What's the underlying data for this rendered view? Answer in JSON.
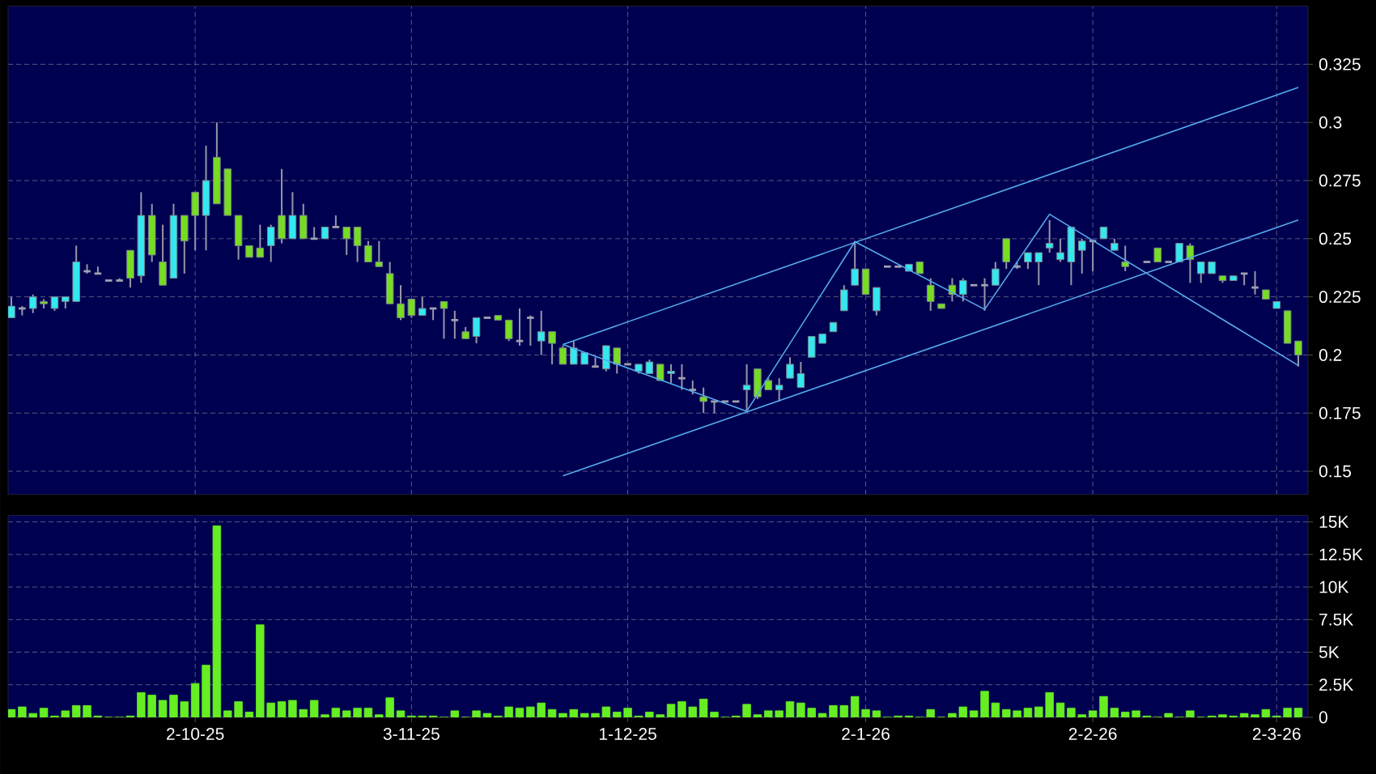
{
  "chart_data": [
    {
      "type": "candlestick",
      "tick_labels": "y",
      "grid": true,
      "categories": [
        null,
        null,
        null,
        null,
        null,
        null,
        null,
        null,
        null,
        null,
        null,
        null,
        null,
        null,
        null,
        null,
        null,
        null,
        null,
        null,
        null,
        null,
        null,
        null,
        null,
        null,
        null,
        null,
        null,
        null,
        null,
        null,
        null,
        null,
        null,
        null,
        null,
        null,
        null,
        null,
        null,
        null,
        null,
        null,
        null,
        null,
        null,
        null,
        null,
        null,
        null,
        null,
        null,
        null,
        null,
        null,
        null,
        null,
        null,
        null,
        null,
        null,
        null,
        null,
        null,
        null,
        null,
        null,
        null,
        null,
        null,
        null,
        null,
        null,
        null,
        null,
        null,
        null,
        null,
        null,
        null,
        null,
        null,
        null,
        null,
        null,
        null,
        null,
        null,
        null,
        null,
        null,
        null,
        null,
        null,
        null,
        null,
        null,
        null,
        null,
        null,
        null,
        null,
        null,
        null,
        null,
        null,
        null,
        null,
        null,
        null,
        null,
        null,
        null,
        null,
        null,
        null,
        null,
        null,
        null
      ],
      "ylim": [
        0.14,
        0.35
      ],
      "yticks": [
        0.15,
        0.175,
        0.2,
        0.225,
        0.25,
        0.275,
        0.3,
        0.325
      ],
      "ohlc": [
        [
          0.216,
          0.225,
          0.216,
          0.221
        ],
        [
          0.22,
          0.221,
          0.217,
          0.22
        ],
        [
          0.22,
          0.226,
          0.218,
          0.225
        ],
        [
          0.223,
          0.224,
          0.22,
          0.222
        ],
        [
          0.22,
          0.225,
          0.219,
          0.225
        ],
        [
          0.223,
          0.225,
          0.22,
          0.225
        ],
        [
          0.223,
          0.247,
          0.223,
          0.24
        ],
        [
          0.236,
          0.239,
          0.235,
          0.236
        ],
        [
          0.235,
          0.238,
          0.235,
          0.235
        ],
        [
          0.232,
          0.232,
          0.232,
          0.232
        ],
        [
          0.232,
          0.233,
          0.232,
          0.232
        ],
        [
          0.245,
          0.245,
          0.229,
          0.233
        ],
        [
          0.234,
          0.27,
          0.231,
          0.26
        ],
        [
          0.26,
          0.265,
          0.24,
          0.243
        ],
        [
          0.24,
          0.256,
          0.23,
          0.23
        ],
        [
          0.233,
          0.265,
          0.233,
          0.26
        ],
        [
          0.26,
          0.26,
          0.235,
          0.249
        ],
        [
          0.27,
          0.27,
          0.245,
          0.26
        ],
        [
          0.26,
          0.29,
          0.245,
          0.275
        ],
        [
          0.285,
          0.3,
          0.265,
          0.265
        ],
        [
          0.28,
          0.28,
          0.26,
          0.26
        ],
        [
          0.26,
          0.26,
          0.241,
          0.247
        ],
        [
          0.247,
          0.247,
          0.242,
          0.242
        ],
        [
          0.246,
          0.256,
          0.242,
          0.242
        ],
        [
          0.247,
          0.256,
          0.24,
          0.255
        ],
        [
          0.26,
          0.28,
          0.248,
          0.25
        ],
        [
          0.25,
          0.27,
          0.25,
          0.26
        ],
        [
          0.26,
          0.265,
          0.25,
          0.25
        ],
        [
          0.25,
          0.255,
          0.25,
          0.25
        ],
        [
          0.25,
          0.255,
          0.25,
          0.255
        ],
        [
          0.255,
          0.26,
          0.255,
          0.255
        ],
        [
          0.255,
          0.255,
          0.243,
          0.25
        ],
        [
          0.255,
          0.255,
          0.24,
          0.247
        ],
        [
          0.247,
          0.249,
          0.24,
          0.24
        ],
        [
          0.24,
          0.249,
          0.238,
          0.238
        ],
        [
          0.235,
          0.24,
          0.222,
          0.222
        ],
        [
          0.222,
          0.23,
          0.215,
          0.216
        ],
        [
          0.224,
          0.224,
          0.216,
          0.217
        ],
        [
          0.217,
          0.225,
          0.217,
          0.22
        ],
        [
          0.22,
          0.22,
          0.215,
          0.22
        ],
        [
          0.223,
          0.223,
          0.207,
          0.22
        ],
        [
          0.215,
          0.219,
          0.207,
          0.215
        ],
        [
          0.21,
          0.212,
          0.207,
          0.207
        ],
        [
          0.208,
          0.216,
          0.205,
          0.216
        ],
        [
          0.216,
          0.216,
          0.216,
          0.216
        ],
        [
          0.217,
          0.217,
          0.215,
          0.215
        ],
        [
          0.215,
          0.215,
          0.206,
          0.207
        ],
        [
          0.206,
          0.22,
          0.204,
          0.206
        ],
        [
          0.216,
          0.217,
          0.204,
          0.216
        ],
        [
          0.206,
          0.219,
          0.2,
          0.21
        ],
        [
          0.21,
          0.21,
          0.196,
          0.205
        ],
        [
          0.203,
          0.204,
          0.196,
          0.196
        ],
        [
          0.196,
          0.206,
          0.196,
          0.203
        ],
        [
          0.196,
          0.201,
          0.196,
          0.201
        ],
        [
          0.195,
          0.199,
          0.195,
          0.195
        ],
        [
          0.194,
          0.204,
          0.193,
          0.204
        ],
        [
          0.203,
          0.203,
          0.192,
          0.196
        ],
        [
          0.196,
          0.196,
          0.196,
          0.196
        ],
        [
          0.193,
          0.196,
          0.192,
          0.196
        ],
        [
          0.192,
          0.198,
          0.192,
          0.197
        ],
        [
          0.196,
          0.196,
          0.189,
          0.189
        ],
        [
          0.192,
          0.196,
          0.188,
          0.193
        ],
        [
          0.19,
          0.196,
          0.185,
          0.19
        ],
        [
          0.185,
          0.189,
          0.183,
          0.185
        ],
        [
          0.182,
          0.186,
          0.175,
          0.18
        ],
        [
          0.18,
          0.18,
          0.175,
          0.18
        ],
        [
          0.18,
          0.18,
          0.18,
          0.18
        ],
        [
          0.18,
          0.18,
          0.18,
          0.18
        ],
        [
          0.185,
          0.196,
          0.176,
          0.187
        ],
        [
          0.194,
          0.194,
          0.181,
          0.182
        ],
        [
          0.189,
          0.19,
          0.185,
          0.185
        ],
        [
          0.185,
          0.19,
          0.18,
          0.187
        ],
        [
          0.19,
          0.199,
          0.19,
          0.196
        ],
        [
          0.186,
          0.197,
          0.186,
          0.192
        ],
        [
          0.199,
          0.208,
          0.199,
          0.208
        ],
        [
          0.205,
          0.209,
          0.205,
          0.209
        ],
        [
          0.21,
          0.214,
          0.21,
          0.214
        ],
        [
          0.219,
          0.23,
          0.219,
          0.228
        ],
        [
          0.23,
          0.249,
          0.23,
          0.237
        ],
        [
          0.237,
          0.237,
          0.226,
          0.226
        ],
        [
          0.219,
          0.229,
          0.217,
          0.229
        ],
        [
          0.238,
          0.238,
          0.238,
          0.238
        ],
        [
          0.238,
          0.238,
          0.238,
          0.238
        ],
        [
          0.236,
          0.239,
          0.236,
          0.239
        ],
        [
          0.24,
          0.24,
          0.235,
          0.235
        ],
        [
          0.23,
          0.233,
          0.219,
          0.223
        ],
        [
          0.222,
          0.222,
          0.22,
          0.22
        ],
        [
          0.23,
          0.233,
          0.223,
          0.226
        ],
        [
          0.226,
          0.233,
          0.223,
          0.232
        ],
        [
          0.23,
          0.23,
          0.23,
          0.23
        ],
        [
          0.23,
          0.233,
          0.219,
          0.23
        ],
        [
          0.23,
          0.24,
          0.23,
          0.237
        ],
        [
          0.25,
          0.25,
          0.237,
          0.24
        ],
        [
          0.238,
          0.24,
          0.237,
          0.238
        ],
        [
          0.24,
          0.244,
          0.237,
          0.244
        ],
        [
          0.24,
          0.244,
          0.23,
          0.244
        ],
        [
          0.246,
          0.258,
          0.244,
          0.248
        ],
        [
          0.241,
          0.25,
          0.24,
          0.244
        ],
        [
          0.24,
          0.255,
          0.23,
          0.255
        ],
        [
          0.245,
          0.25,
          0.235,
          0.249
        ],
        [
          0.249,
          0.249,
          0.236,
          0.249
        ],
        [
          0.25,
          0.255,
          0.25,
          0.255
        ],
        [
          0.245,
          0.25,
          0.245,
          0.248
        ],
        [
          0.24,
          0.247,
          0.236,
          0.238
        ],
        null,
        [
          0.24,
          0.24,
          0.24,
          0.24
        ],
        [
          0.246,
          0.246,
          0.24,
          0.24
        ],
        [
          0.24,
          0.24,
          0.24,
          0.24
        ],
        [
          0.24,
          0.248,
          0.24,
          0.248
        ],
        [
          0.247,
          0.248,
          0.231,
          0.241
        ],
        [
          0.235,
          0.24,
          0.231,
          0.24
        ],
        [
          0.235,
          0.24,
          0.235,
          0.24
        ],
        [
          0.234,
          0.234,
          0.231,
          0.232
        ],
        [
          0.232,
          0.234,
          0.232,
          0.234
        ],
        [
          0.235,
          0.235,
          0.23,
          0.235
        ],
        [
          0.229,
          0.236,
          0.226,
          0.229
        ],
        [
          0.228,
          0.228,
          0.224,
          0.224
        ],
        [
          0.22,
          0.223,
          0.22,
          0.223
        ],
        [
          0.219,
          0.219,
          0.205,
          0.205
        ],
        [
          0.206,
          0.206,
          0.195,
          0.2
        ]
      ],
      "colors": [
        "#33e8f0",
        "#a0a0b0",
        "#33e8f0",
        "#77dd22",
        "#33e8f0",
        "#33e8f0",
        "#33e8f0",
        "#a0a0b0",
        "#a0a0b0",
        "#a0a0b0",
        "#a0a0b0",
        "#77dd22",
        "#33e8f0",
        "#77dd22",
        "#77dd22",
        "#33e8f0",
        "#77dd22",
        "#77dd22",
        "#33e8f0",
        "#77dd22",
        "#77dd22",
        "#77dd22",
        "#77dd22",
        "#77dd22",
        "#33e8f0",
        "#77dd22",
        "#33e8f0",
        "#77dd22",
        "#a0a0b0",
        "#33e8f0",
        "#a0a0b0",
        "#77dd22",
        "#77dd22",
        "#77dd22",
        "#77dd22",
        "#77dd22",
        "#77dd22",
        "#77dd22",
        "#33e8f0",
        "#a0a0b0",
        "#77dd22",
        "#a0a0b0",
        "#77dd22",
        "#33e8f0",
        "#a0a0b0",
        "#77dd22",
        "#77dd22",
        "#a0a0b0",
        "#a0a0b0",
        "#33e8f0",
        "#77dd22",
        "#77dd22",
        "#33e8f0",
        "#33e8f0",
        "#a0a0b0",
        "#33e8f0",
        "#77dd22",
        "#a0a0b0",
        "#33e8f0",
        "#33e8f0",
        "#77dd22",
        "#33e8f0",
        "#a0a0b0",
        "#a0a0b0",
        "#77dd22",
        "#a0a0b0",
        "#a0a0b0",
        "#a0a0b0",
        "#33e8f0",
        "#77dd22",
        "#77dd22",
        "#33e8f0",
        "#33e8f0",
        "#33e8f0",
        "#33e8f0",
        "#33e8f0",
        "#33e8f0",
        "#33e8f0",
        "#33e8f0",
        "#77dd22",
        "#33e8f0",
        "#a0a0b0",
        "#a0a0b0",
        "#33e8f0",
        "#77dd22",
        "#77dd22",
        "#77dd22",
        "#77dd22",
        "#33e8f0",
        "#a0a0b0",
        "#a0a0b0",
        "#33e8f0",
        "#77dd22",
        "#a0a0b0",
        "#33e8f0",
        "#33e8f0",
        "#33e8f0",
        "#33e8f0",
        "#33e8f0",
        "#33e8f0",
        "#a0a0b0",
        "#33e8f0",
        "#33e8f0",
        "#77dd22",
        null,
        "#a0a0b0",
        "#77dd22",
        "#a0a0b0",
        "#33e8f0",
        "#77dd22",
        "#33e8f0",
        "#33e8f0",
        "#77dd22",
        "#33e8f0",
        "#a0a0b0",
        "#a0a0b0",
        "#77dd22",
        "#33e8f0",
        "#77dd22",
        "#77dd22"
      ],
      "series": [
        {
          "type": "line",
          "color": "#55aaee",
          "values": [
            null,
            null,
            null,
            null,
            null,
            null,
            null,
            null,
            null,
            null,
            null,
            null,
            null,
            null,
            null,
            null,
            null,
            null,
            null,
            null,
            null,
            null,
            null,
            null,
            null,
            null,
            null,
            null,
            null,
            null,
            null,
            null,
            null,
            null,
            null,
            null,
            null,
            null,
            null,
            null,
            null,
            null,
            null,
            null,
            null,
            null,
            null,
            null,
            null,
            null,
            null,
            0.2045,
            null,
            null,
            null,
            null,
            null,
            null,
            null,
            null,
            null,
            null,
            null,
            null,
            null,
            null,
            null,
            null,
            null,
            null,
            null,
            null,
            null,
            null,
            null,
            null,
            null,
            null,
            null,
            null,
            null,
            null,
            null,
            null,
            null,
            null,
            null,
            null,
            null,
            null,
            null,
            null,
            null,
            null,
            null,
            null,
            null,
            null,
            null,
            null,
            null,
            null,
            null,
            null,
            null,
            null,
            null,
            null,
            null,
            null,
            null,
            null,
            null,
            null,
            null,
            null,
            null,
            null,
            null,
            0.315
          ]
        },
        {
          "type": "line",
          "color": "#55aaee",
          "values": [
            null,
            null,
            null,
            null,
            null,
            null,
            null,
            null,
            null,
            null,
            null,
            null,
            null,
            null,
            null,
            null,
            null,
            null,
            null,
            null,
            null,
            null,
            null,
            null,
            null,
            null,
            null,
            null,
            null,
            null,
            null,
            null,
            null,
            null,
            null,
            null,
            null,
            null,
            null,
            null,
            null,
            null,
            null,
            null,
            null,
            null,
            null,
            null,
            null,
            null,
            null,
            0.148,
            null,
            null,
            null,
            null,
            null,
            null,
            null,
            null,
            null,
            null,
            null,
            null,
            null,
            null,
            null,
            null,
            null,
            null,
            null,
            null,
            null,
            null,
            null,
            null,
            null,
            null,
            null,
            null,
            null,
            null,
            null,
            null,
            null,
            null,
            null,
            null,
            null,
            null,
            null,
            null,
            null,
            null,
            null,
            null,
            null,
            null,
            null,
            null,
            null,
            null,
            null,
            null,
            null,
            null,
            null,
            null,
            null,
            null,
            null,
            null,
            null,
            null,
            null,
            null,
            null,
            null,
            null,
            0.258
          ]
        },
        {
          "type": "line",
          "color": "#55aaee",
          "values": [
            null,
            null,
            null,
            null,
            null,
            null,
            null,
            null,
            null,
            null,
            null,
            null,
            null,
            null,
            null,
            null,
            null,
            null,
            null,
            null,
            null,
            null,
            null,
            null,
            null,
            null,
            null,
            null,
            null,
            null,
            null,
            null,
            null,
            null,
            null,
            null,
            null,
            null,
            null,
            null,
            null,
            null,
            null,
            null,
            null,
            null,
            null,
            null,
            null,
            null,
            null,
            0.2045,
            null,
            null,
            null,
            null,
            null,
            null,
            null,
            null,
            null,
            null,
            null,
            null,
            null,
            null,
            null,
            null,
            0.1758,
            null,
            null,
            null,
            null,
            null,
            null,
            null,
            null,
            null,
            0.2487,
            null,
            null,
            null,
            null,
            null,
            null,
            null,
            null,
            null,
            null,
            null,
            0.2196,
            null,
            null,
            null,
            null,
            null,
            0.2605,
            null,
            null,
            null,
            null,
            null,
            null,
            null,
            null,
            null,
            null,
            null,
            null,
            null,
            null,
            null,
            null,
            null,
            null,
            null,
            null,
            null,
            null,
            0.1955
          ]
        }
      ]
    },
    {
      "type": "bar",
      "grid": true,
      "color": "#66ee22",
      "categories": [
        null,
        null,
        null,
        null,
        null,
        null,
        null,
        null,
        null,
        null,
        null,
        null,
        null,
        null,
        null,
        null,
        null,
        "2-10-25",
        null,
        null,
        null,
        null,
        null,
        null,
        null,
        null,
        null,
        null,
        null,
        null,
        null,
        null,
        null,
        null,
        null,
        null,
        null,
        "3-11-25",
        null,
        null,
        null,
        null,
        null,
        null,
        null,
        null,
        null,
        null,
        null,
        null,
        null,
        null,
        null,
        null,
        null,
        null,
        null,
        "1-12-25",
        null,
        null,
        null,
        null,
        null,
        null,
        null,
        null,
        null,
        null,
        null,
        null,
        null,
        null,
        null,
        null,
        null,
        null,
        null,
        null,
        null,
        "2-1-26",
        null,
        null,
        null,
        null,
        null,
        null,
        null,
        null,
        null,
        null,
        null,
        null,
        null,
        null,
        null,
        null,
        null,
        null,
        null,
        null,
        "2-2-26",
        null,
        null,
        null,
        null,
        null,
        null,
        null,
        null,
        null,
        null,
        null,
        null,
        null,
        null,
        null,
        null,
        "2-3-26",
        null,
        null
      ],
      "ylim": [
        0,
        15500
      ],
      "yticks": [
        0,
        {
          "value": 2500,
          "label": "2.5K"
        },
        {
          "value": 5000,
          "label": "5K"
        },
        {
          "value": 7500,
          "label": "7.5K"
        },
        {
          "value": 10000,
          "label": "10K"
        },
        {
          "value": 12500,
          "label": "12.5K"
        },
        {
          "value": 15000,
          "label": "15K"
        }
      ],
      "values": [
        600,
        800,
        300,
        700,
        100,
        500,
        900,
        900,
        100,
        0,
        0,
        100,
        1900,
        1700,
        1300,
        1700,
        1200,
        2600,
        4000,
        14700,
        500,
        1200,
        400,
        7100,
        1100,
        1200,
        1300,
        600,
        1300,
        200,
        700,
        500,
        700,
        700,
        200,
        1500,
        500,
        100,
        100,
        100,
        0,
        500,
        0,
        500,
        300,
        100,
        800,
        700,
        800,
        1100,
        600,
        300,
        600,
        300,
        300,
        800,
        400,
        700,
        100,
        400,
        200,
        1000,
        1200,
        800,
        1400,
        400,
        0,
        100,
        1000,
        200,
        500,
        500,
        1200,
        1100,
        700,
        300,
        900,
        900,
        1600,
        600,
        500,
        0,
        100,
        100,
        0,
        600,
        0,
        300,
        800,
        500,
        2000,
        1100,
        600,
        500,
        700,
        800,
        1900,
        1100,
        700,
        200,
        500,
        1600,
        700,
        400,
        500,
        100,
        0,
        300,
        0,
        500,
        0,
        100,
        200,
        100,
        300,
        200,
        600,
        100,
        700,
        700
      ]
    }
  ]
}
